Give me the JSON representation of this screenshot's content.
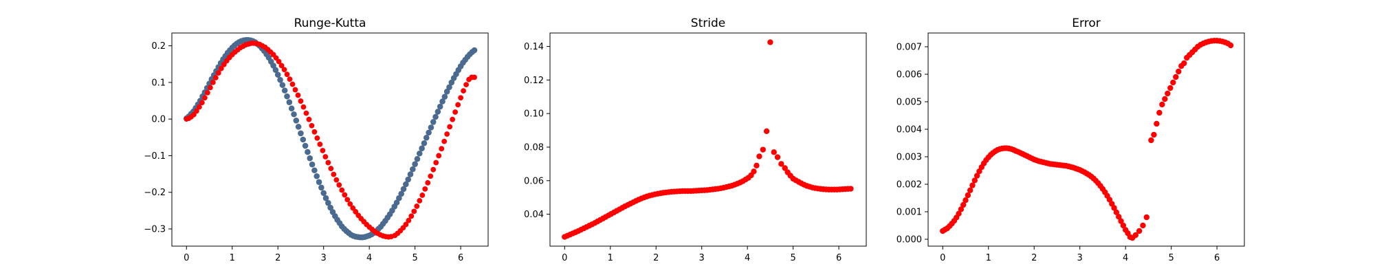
{
  "colors": {
    "exact": "#4a6a8f",
    "numerical": "#ff0000",
    "frame": "#000000"
  },
  "chart_data": [
    {
      "type": "scatter",
      "title": "Runge-Kutta",
      "xlim": [
        -0.32,
        6.6
      ],
      "ylim": [
        -0.347,
        0.235
      ],
      "xticks": [
        0,
        1,
        2,
        3,
        4,
        5,
        6
      ],
      "xtick_labels": [
        "0",
        "1",
        "2",
        "3",
        "4",
        "5",
        "6"
      ],
      "yticks": [
        -0.3,
        -0.2,
        -0.1,
        0.0,
        0.1,
        0.2
      ],
      "ytick_labels": [
        "−0.3",
        "−0.2",
        "−0.1",
        "0.0",
        "0.1",
        "0.2"
      ],
      "grid": false,
      "series": [
        {
          "role": "exact",
          "color": "#4a6a8f",
          "x": [
            0,
            0.05,
            0.1,
            0.15,
            0.2,
            0.25,
            0.3,
            0.35,
            0.4,
            0.45,
            0.5,
            0.55,
            0.6,
            0.65,
            0.7,
            0.75,
            0.8,
            0.85,
            0.9,
            0.95,
            1,
            1.05,
            1.1,
            1.15,
            1.2,
            1.25,
            1.3,
            1.35,
            1.4,
            1.45,
            1.5,
            1.55,
            1.6,
            1.65,
            1.7,
            1.75,
            1.8,
            1.85,
            1.9,
            1.95,
            2,
            2.05,
            2.1,
            2.15,
            2.2,
            2.25,
            2.3,
            2.35,
            2.4,
            2.45,
            2.5,
            2.55,
            2.6,
            2.65,
            2.7,
            2.75,
            2.8,
            2.85,
            2.9,
            2.95,
            3,
            3.05,
            3.1,
            3.15,
            3.2,
            3.25,
            3.3,
            3.35,
            3.4,
            3.45,
            3.5,
            3.55,
            3.6,
            3.65,
            3.7,
            3.75,
            3.8,
            3.85,
            3.9,
            3.95,
            4,
            4.05,
            4.1,
            4.15,
            4.2,
            4.25,
            4.3,
            4.35,
            4.4,
            4.45,
            4.5,
            4.55,
            4.6,
            4.65,
            4.7,
            4.75,
            4.8,
            4.85,
            4.9,
            4.95,
            5,
            5.05,
            5.1,
            5.15,
            5.2,
            5.25,
            5.3,
            5.35,
            5.4,
            5.45,
            5.5,
            5.55,
            5.6,
            5.65,
            5.7,
            5.75,
            5.8,
            5.85,
            5.9,
            5.95,
            6,
            6.05,
            6.1,
            6.15,
            6.2,
            6.25,
            6.3
          ],
          "y": [
            0.002,
            0.007,
            0.014,
            0.021,
            0.03,
            0.04,
            0.05,
            0.062,
            0.073,
            0.085,
            0.097,
            0.109,
            0.12,
            0.131,
            0.142,
            0.153,
            0.163,
            0.172,
            0.181,
            0.188,
            0.195,
            0.201,
            0.206,
            0.21,
            0.213,
            0.215,
            0.216,
            0.216,
            0.215,
            0.213,
            0.21,
            0.205,
            0.2,
            0.193,
            0.186,
            0.177,
            0.168,
            0.157,
            0.146,
            0.134,
            0.121,
            0.107,
            0.093,
            0.078,
            0.062,
            0.046,
            0.029,
            0.013,
            -0.004,
            -0.021,
            -0.039,
            -0.056,
            -0.073,
            -0.09,
            -0.107,
            -0.124,
            -0.14,
            -0.156,
            -0.172,
            -0.187,
            -0.202,
            -0.216,
            -0.229,
            -0.242,
            -0.254,
            -0.265,
            -0.275,
            -0.284,
            -0.293,
            -0.3,
            -0.306,
            -0.311,
            -0.316,
            -0.319,
            -0.321,
            -0.322,
            -0.323,
            -0.323,
            -0.322,
            -0.32,
            -0.318,
            -0.315,
            -0.311,
            -0.306,
            -0.3,
            -0.294,
            -0.286,
            -0.278,
            -0.269,
            -0.26,
            -0.25,
            -0.239,
            -0.228,
            -0.216,
            -0.204,
            -0.191,
            -0.178,
            -0.165,
            -0.151,
            -0.137,
            -0.123,
            -0.109,
            -0.094,
            -0.08,
            -0.066,
            -0.051,
            -0.037,
            -0.023,
            -0.008,
            0.006,
            0.02,
            0.034,
            0.048,
            0.061,
            0.075,
            0.087,
            0.1,
            0.112,
            0.123,
            0.134,
            0.144,
            0.154,
            0.162,
            0.17,
            0.177,
            0.183,
            0.188
          ]
        },
        {
          "role": "numerical",
          "color": "#ff0000",
          "x": [
            0,
            0.05,
            0.1,
            0.16,
            0.22,
            0.28,
            0.34,
            0.4,
            0.46,
            0.52,
            0.58,
            0.64,
            0.7,
            0.76,
            0.82,
            0.88,
            0.94,
            1,
            1.06,
            1.12,
            1.18,
            1.24,
            1.3,
            1.36,
            1.42,
            1.48,
            1.54,
            1.6,
            1.66,
            1.72,
            1.78,
            1.84,
            1.9,
            1.96,
            2.02,
            2.08,
            2.14,
            2.2,
            2.26,
            2.32,
            2.38,
            2.44,
            2.5,
            2.56,
            2.62,
            2.68,
            2.74,
            2.8,
            2.86,
            2.92,
            2.98,
            3.04,
            3.1,
            3.16,
            3.22,
            3.28,
            3.34,
            3.4,
            3.46,
            3.52,
            3.58,
            3.64,
            3.7,
            3.76,
            3.82,
            3.88,
            3.94,
            4,
            4.06,
            4.12,
            4.18,
            4.24,
            4.3,
            4.36,
            4.42,
            4.48,
            4.56,
            4.62,
            4.68,
            4.74,
            4.8,
            4.86,
            4.92,
            4.98,
            5.04,
            5.1,
            5.16,
            5.22,
            5.28,
            5.34,
            5.4,
            5.46,
            5.52,
            5.58,
            5.64,
            5.7,
            5.76,
            5.82,
            5.88,
            5.94,
            6,
            6.06,
            6.12,
            6.18,
            6.24,
            6.3
          ],
          "y": [
            0,
            0.002,
            0.006,
            0.012,
            0.022,
            0.033,
            0.045,
            0.058,
            0.072,
            0.086,
            0.1,
            0.113,
            0.126,
            0.138,
            0.149,
            0.159,
            0.168,
            0.176,
            0.183,
            0.189,
            0.195,
            0.199,
            0.203,
            0.205,
            0.207,
            0.207,
            0.206,
            0.204,
            0.2,
            0.196,
            0.19,
            0.183,
            0.176,
            0.167,
            0.157,
            0.146,
            0.135,
            0.122,
            0.109,
            0.095,
            0.08,
            0.065,
            0.049,
            0.033,
            0.016,
            -0.001,
            -0.018,
            -0.035,
            -0.052,
            -0.069,
            -0.086,
            -0.103,
            -0.119,
            -0.135,
            -0.151,
            -0.166,
            -0.18,
            -0.194,
            -0.207,
            -0.22,
            -0.232,
            -0.243,
            -0.253,
            -0.263,
            -0.272,
            -0.28,
            -0.288,
            -0.295,
            -0.301,
            -0.307,
            -0.312,
            -0.316,
            -0.319,
            -0.321,
            -0.322,
            -0.321,
            -0.318,
            -0.312,
            -0.305,
            -0.297,
            -0.288,
            -0.277,
            -0.265,
            -0.252,
            -0.238,
            -0.223,
            -0.208,
            -0.191,
            -0.174,
            -0.156,
            -0.138,
            -0.119,
            -0.1,
            -0.081,
            -0.061,
            -0.041,
            -0.021,
            -0.001,
            0.019,
            0.039,
            0.058,
            0.077,
            0.094,
            0.108,
            0.114,
            0.114
          ]
        }
      ]
    },
    {
      "type": "scatter",
      "title": "Stride",
      "xlim": [
        -0.32,
        6.6
      ],
      "ylim": [
        0.021,
        0.148
      ],
      "xticks": [
        0,
        1,
        2,
        3,
        4,
        5,
        6
      ],
      "xtick_labels": [
        "0",
        "1",
        "2",
        "3",
        "4",
        "5",
        "6"
      ],
      "yticks": [
        0.04,
        0.06,
        0.08,
        0.1,
        0.12,
        0.14
      ],
      "ytick_labels": [
        "0.04",
        "0.06",
        "0.08",
        "0.10",
        "0.12",
        "0.14"
      ],
      "grid": false,
      "series": [
        {
          "role": "stride",
          "color": "#ff0000",
          "x": [
            0,
            0.06,
            0.12,
            0.18,
            0.24,
            0.3,
            0.36,
            0.42,
            0.48,
            0.54,
            0.6,
            0.66,
            0.72,
            0.78,
            0.84,
            0.9,
            0.96,
            1.02,
            1.08,
            1.14,
            1.2,
            1.26,
            1.32,
            1.38,
            1.44,
            1.5,
            1.56,
            1.62,
            1.68,
            1.74,
            1.8,
            1.86,
            1.92,
            1.98,
            2.04,
            2.1,
            2.16,
            2.22,
            2.28,
            2.34,
            2.4,
            2.46,
            2.52,
            2.58,
            2.64,
            2.7,
            2.76,
            2.82,
            2.88,
            2.94,
            3,
            3.06,
            3.12,
            3.18,
            3.24,
            3.3,
            3.36,
            3.42,
            3.48,
            3.54,
            3.6,
            3.66,
            3.72,
            3.78,
            3.84,
            3.9,
            3.96,
            4.02,
            4.08,
            4.14,
            4.2,
            4.26,
            4.34,
            4.42,
            4.5,
            4.58,
            4.66,
            4.74,
            4.82,
            4.88,
            4.94,
            5,
            5.06,
            5.12,
            5.18,
            5.24,
            5.3,
            5.36,
            5.42,
            5.48,
            5.54,
            5.6,
            5.66,
            5.72,
            5.78,
            5.84,
            5.9,
            5.96,
            6.02,
            6.08,
            6.14,
            6.2,
            6.26
          ],
          "y": [
            0.0265,
            0.0272,
            0.0279,
            0.0286,
            0.0293,
            0.03,
            0.0308,
            0.0316,
            0.0324,
            0.0332,
            0.034,
            0.0348,
            0.0357,
            0.0366,
            0.0375,
            0.0384,
            0.0393,
            0.0402,
            0.0411,
            0.042,
            0.0429,
            0.0438,
            0.0447,
            0.0455,
            0.0463,
            0.0471,
            0.0479,
            0.0487,
            0.0494,
            0.05,
            0.0506,
            0.0511,
            0.0515,
            0.0519,
            0.0522,
            0.0525,
            0.0528,
            0.053,
            0.0532,
            0.0534,
            0.0535,
            0.0536,
            0.0537,
            0.0538,
            0.0538,
            0.0538,
            0.0538,
            0.0539,
            0.054,
            0.0541,
            0.0542,
            0.0543,
            0.0544,
            0.0546,
            0.0548,
            0.055,
            0.0552,
            0.0555,
            0.0558,
            0.0562,
            0.0566,
            0.057,
            0.0576,
            0.0582,
            0.0589,
            0.0597,
            0.0607,
            0.0617,
            0.0632,
            0.0655,
            0.069,
            0.0745,
            0.0785,
            0.0895,
            0.1425,
            0.077,
            0.074,
            0.07,
            0.0675,
            0.065,
            0.063,
            0.0612,
            0.0602,
            0.0593,
            0.0584,
            0.0576,
            0.0569,
            0.0564,
            0.0559,
            0.0556,
            0.0553,
            0.0551,
            0.0549,
            0.0548,
            0.0547,
            0.0547,
            0.0547,
            0.0547,
            0.0548,
            0.0549,
            0.055,
            0.0551,
            0.0552
          ]
        }
      ]
    },
    {
      "type": "scatter",
      "title": "Error",
      "xlim": [
        -0.32,
        6.6
      ],
      "ylim": [
        -0.00025,
        0.0075
      ],
      "xticks": [
        0,
        1,
        2,
        3,
        4,
        5,
        6
      ],
      "xtick_labels": [
        "0",
        "1",
        "2",
        "3",
        "4",
        "5",
        "6"
      ],
      "yticks": [
        0.0,
        0.001,
        0.002,
        0.003,
        0.004,
        0.005,
        0.006,
        0.007
      ],
      "ytick_labels": [
        "0.000",
        "0.001",
        "0.002",
        "0.003",
        "0.004",
        "0.005",
        "0.006",
        "0.007"
      ],
      "grid": false,
      "series": [
        {
          "role": "error",
          "color": "#ff0000",
          "x": [
            0,
            0.05,
            0.1,
            0.15,
            0.2,
            0.25,
            0.3,
            0.35,
            0.4,
            0.45,
            0.5,
            0.55,
            0.6,
            0.65,
            0.7,
            0.75,
            0.8,
            0.85,
            0.9,
            0.95,
            1,
            1.05,
            1.1,
            1.15,
            1.2,
            1.25,
            1.3,
            1.35,
            1.4,
            1.45,
            1.5,
            1.55,
            1.6,
            1.65,
            1.7,
            1.75,
            1.8,
            1.85,
            1.9,
            1.95,
            2,
            2.05,
            2.1,
            2.15,
            2.2,
            2.25,
            2.3,
            2.35,
            2.4,
            2.45,
            2.5,
            2.55,
            2.6,
            2.65,
            2.7,
            2.75,
            2.8,
            2.85,
            2.9,
            2.95,
            3,
            3.05,
            3.1,
            3.15,
            3.2,
            3.25,
            3.3,
            3.35,
            3.4,
            3.45,
            3.5,
            3.55,
            3.6,
            3.65,
            3.7,
            3.75,
            3.8,
            3.85,
            3.9,
            3.95,
            4,
            4.05,
            4.1,
            4.15,
            4.22,
            4.3,
            4.38,
            4.46,
            4.56,
            4.62,
            4.68,
            4.74,
            4.8,
            4.86,
            4.92,
            4.98,
            5.04,
            5.1,
            5.16,
            5.22,
            5.28,
            5.34,
            5.4,
            5.46,
            5.52,
            5.58,
            5.64,
            5.7,
            5.76,
            5.82,
            5.88,
            5.94,
            6,
            6.06,
            6.12,
            6.18,
            6.24,
            6.3
          ],
          "y": [
            0.0003,
            0.00035,
            0.0004,
            0.00048,
            0.00057,
            0.00067,
            0.00079,
            0.00093,
            0.00109,
            0.00125,
            0.00142,
            0.0016,
            0.00178,
            0.00196,
            0.00214,
            0.00231,
            0.00247,
            0.00262,
            0.00276,
            0.00288,
            0.00298,
            0.00307,
            0.00314,
            0.0032,
            0.00325,
            0.00328,
            0.0033,
            0.00331,
            0.00331,
            0.0033,
            0.00328,
            0.00325,
            0.00321,
            0.00318,
            0.00314,
            0.0031,
            0.00306,
            0.00302,
            0.00298,
            0.00294,
            0.0029,
            0.00287,
            0.00284,
            0.00282,
            0.0028,
            0.00278,
            0.00276,
            0.00274,
            0.00273,
            0.00272,
            0.00271,
            0.0027,
            0.00269,
            0.00268,
            0.00267,
            0.00265,
            0.00263,
            0.00261,
            0.00258,
            0.00255,
            0.00252,
            0.00248,
            0.00244,
            0.00239,
            0.00234,
            0.00228,
            0.00221,
            0.00213,
            0.00204,
            0.00194,
            0.00183,
            0.00171,
            0.00158,
            0.00144,
            0.00129,
            0.00114,
            0.00098,
            0.00082,
            0.00066,
            0.0005,
            0.00034,
            0.00022,
            8e-05,
            5e-05,
            0.00015,
            0.0003,
            0.0005,
            0.0008,
            0.0036,
            0.0038,
            0.0042,
            0.0046,
            0.0049,
            0.0051,
            0.0053,
            0.0055,
            0.0057,
            0.0059,
            0.0061,
            0.0063,
            0.0064,
            0.0066,
            0.0067,
            0.0068,
            0.0069,
            0.007,
            0.00707,
            0.00712,
            0.00716,
            0.00719,
            0.00721,
            0.00722,
            0.00722,
            0.00721,
            0.00719,
            0.00716,
            0.00712,
            0.00705
          ]
        }
      ]
    }
  ]
}
